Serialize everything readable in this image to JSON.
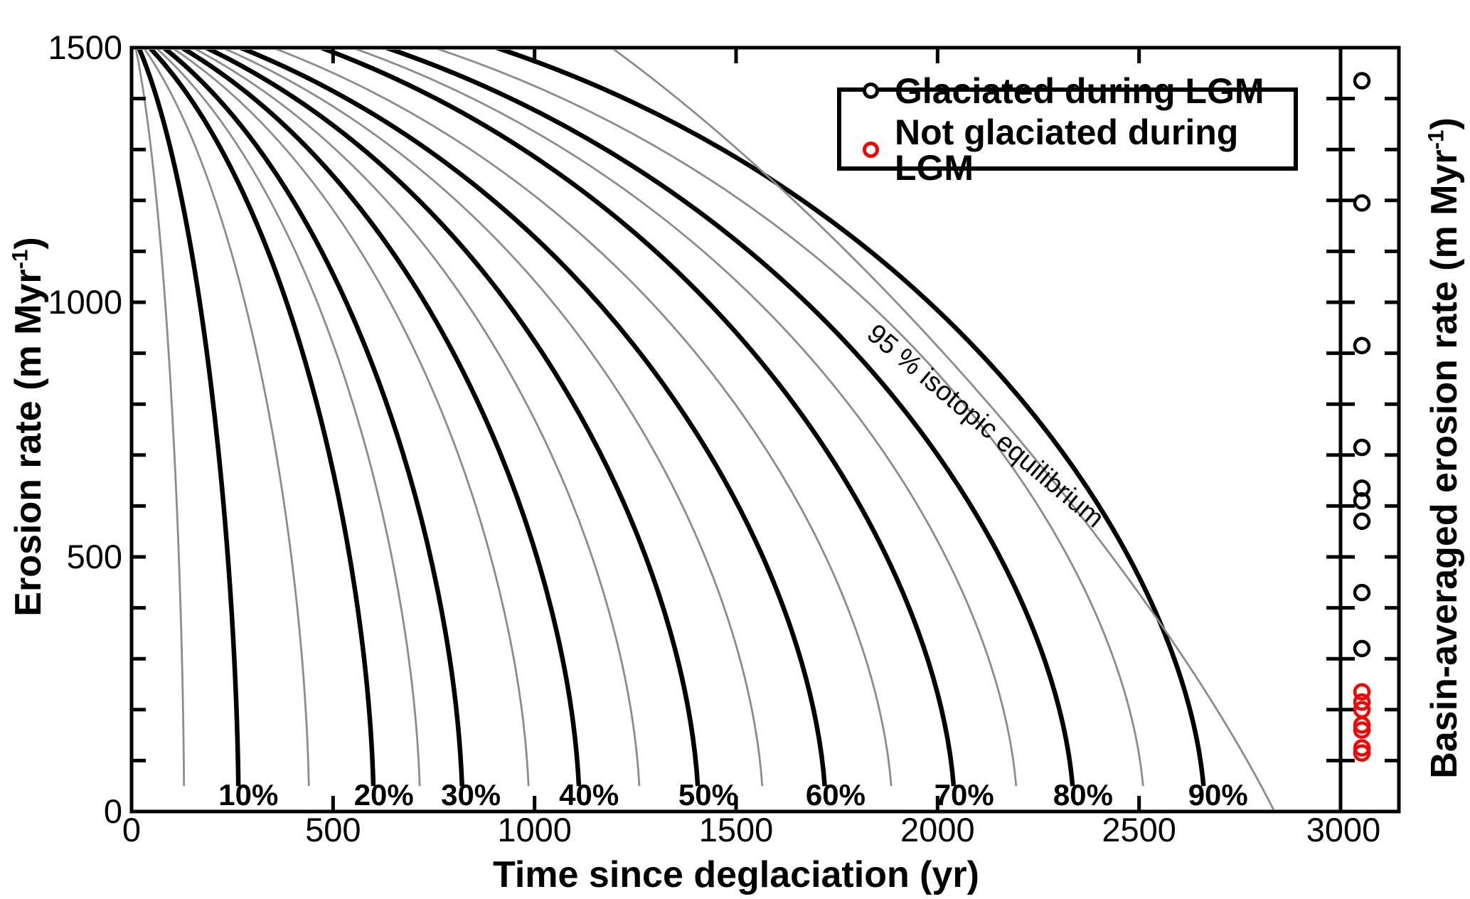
{
  "figure": {
    "x_axis_title_pre": "Time since deglaciation (yr)",
    "y_axis_title_pre": "Erosion rate (m Myr",
    "y_axis_title_sup": "-1",
    "y_axis_title_post": ")",
    "y2_axis_title_pre": "Basin-averaged erosion rate (m Myr",
    "y2_axis_title_sup": "-1",
    "y2_axis_title_post": ")",
    "annotation_95": "95 % isotopic equilibrium"
  },
  "legend": {
    "items": [
      {
        "label": "Glaciated during LGM",
        "color": "#000000"
      },
      {
        "label": "Not glaciated during LGM",
        "color": "#ff0000"
      }
    ]
  },
  "chart_data": {
    "type": "heatmap",
    "subtype": "contour-plus-scatter-strip",
    "title": "",
    "xlabel": "Time since deglaciation (yr)",
    "ylabel": "Erosion rate (m Myr-1)",
    "y2label": "Basin-averaged erosion rate (m Myr-1)",
    "xlim": [
      0,
      3000
    ],
    "ylim": [
      0,
      1500
    ],
    "x_major_ticks": [
      0,
      500,
      1000,
      1500,
      2000,
      2500,
      3000
    ],
    "y_major_ticks": [
      0,
      500,
      1000,
      1500
    ],
    "y_minor_tick_step": 100,
    "contour_colors": {
      "major": "#000000",
      "minor": "#8c8c8c"
    },
    "contours": [
      {
        "percent": 5,
        "style": "minor",
        "t_bottom": 130,
        "t_top": 10
      },
      {
        "percent": 10,
        "style": "major",
        "t_bottom": 265,
        "t_top": 18,
        "label": "10%",
        "label_t": 290
      },
      {
        "percent": 15,
        "style": "minor",
        "t_bottom": 440,
        "t_top": 30
      },
      {
        "percent": 20,
        "style": "major",
        "t_bottom": 600,
        "t_top": 45,
        "label": "20%",
        "label_t": 626
      },
      {
        "percent": 25,
        "style": "minor",
        "t_bottom": 715,
        "t_top": 60
      },
      {
        "percent": 30,
        "style": "major",
        "t_bottom": 820,
        "t_top": 80,
        "label": "30%",
        "label_t": 842
      },
      {
        "percent": 35,
        "style": "minor",
        "t_bottom": 985,
        "t_top": 100
      },
      {
        "percent": 40,
        "style": "major",
        "t_bottom": 1110,
        "t_top": 125,
        "label": "40%",
        "label_t": 1135
      },
      {
        "percent": 45,
        "style": "minor",
        "t_bottom": 1260,
        "t_top": 152
      },
      {
        "percent": 50,
        "style": "major",
        "t_bottom": 1405,
        "t_top": 185,
        "label": "50%",
        "label_t": 1431
      },
      {
        "percent": 55,
        "style": "minor",
        "t_bottom": 1565,
        "t_top": 225
      },
      {
        "percent": 60,
        "style": "major",
        "t_bottom": 1720,
        "t_top": 270,
        "label": "60%",
        "label_t": 1747
      },
      {
        "percent": 65,
        "style": "minor",
        "t_bottom": 1885,
        "t_top": 350
      },
      {
        "percent": 70,
        "style": "major",
        "t_bottom": 2040,
        "t_top": 470,
        "label": "70%",
        "label_t": 2066
      },
      {
        "percent": 75,
        "style": "minor",
        "t_bottom": 2195,
        "t_top": 547
      },
      {
        "percent": 80,
        "style": "major",
        "t_bottom": 2335,
        "t_top": 632,
        "label": "80%",
        "label_t": 2361
      },
      {
        "percent": 85,
        "style": "minor",
        "t_bottom": 2510,
        "t_top": 750
      },
      {
        "percent": 90,
        "style": "major",
        "t_bottom": 2660,
        "t_top": 905,
        "label": "90%",
        "label_t": 2696
      },
      {
        "percent": 95,
        "style": "minor",
        "t_bottom": 2836,
        "t_top": 1191,
        "annotated": true
      }
    ],
    "scatter_strip": {
      "series": [
        {
          "name": "Glaciated during LGM",
          "color": "#000000",
          "erosion_rates": [
            1435,
            1195,
            915,
            715,
            635,
            610,
            570,
            430,
            320
          ]
        },
        {
          "name": "Not glaciated during LGM",
          "color": "#ff0000",
          "erosion_rates": [
            235,
            215,
            200,
            170,
            160,
            125,
            115
          ]
        }
      ]
    }
  }
}
